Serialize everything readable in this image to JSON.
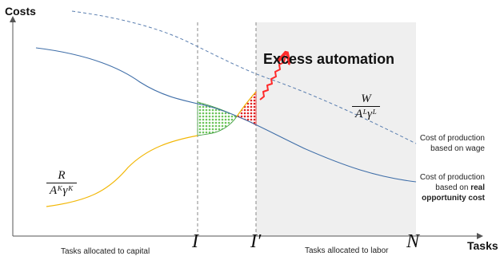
{
  "axes": {
    "y_label": "Costs",
    "x_label": "Tasks"
  },
  "ticks": {
    "I": "I",
    "I_prime": "I′",
    "N": "N"
  },
  "annotations": {
    "excess_automation": "Excess automation"
  },
  "formulas": {
    "wage_ratio": {
      "numerator": "W",
      "denominator": "Aᴸγᴸ"
    },
    "rental_ratio": {
      "numerator": "R",
      "denominator": "Aᴷγᴷ"
    }
  },
  "curve_labels": {
    "wage_line1": "Cost of production",
    "wage_line2": "based on wage",
    "real_line1": "Cost of production",
    "real_line2_prefix": "based on",
    "real_line2_bold": "real",
    "real_line3": "opportunity cost"
  },
  "regions": {
    "capital": "Tasks allocated to capital",
    "labor": "Tasks allocated to labor"
  },
  "colors": {
    "wage_curve": "#5b7fb0",
    "real_curve": "#3f6ea8",
    "capital_curve": "#f2b705",
    "green_fill": "#7ccf6a",
    "red_fill": "#e02020",
    "labor_shade": "#efefef",
    "arrow": "#ff2a2a"
  }
}
